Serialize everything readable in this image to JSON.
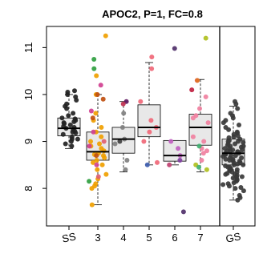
{
  "chart_data": {
    "type": "boxplot",
    "title": "APOC2, P=1, FC=0.8",
    "xlabel": "",
    "ylabel": "",
    "ylim": [
      7.2,
      11.45
    ],
    "y_ticks": [
      8,
      9,
      10,
      11
    ],
    "y_tick_labels": [
      "8",
      "9",
      "10",
      "11"
    ],
    "grid": false,
    "legend": "none",
    "divider_after_category": "7",
    "categories": [
      "SS",
      "3",
      "4",
      "5",
      "6",
      "7",
      "GS"
    ],
    "boxes": [
      {
        "category": "SS",
        "whisker_low": 8.85,
        "q1": 9.12,
        "median": 9.28,
        "q3": 9.5,
        "whisker_high": 10.0,
        "fill": "#e8e8e8"
      },
      {
        "category": "3",
        "whisker_low": 7.65,
        "q1": 8.6,
        "median": 8.78,
        "q3": 9.2,
        "whisker_high": 10.0,
        "fill": "#e8e8e8"
      },
      {
        "category": "4",
        "whisker_low": 8.35,
        "q1": 8.75,
        "median": 9.05,
        "q3": 9.3,
        "whisker_high": 9.85,
        "fill": "#e8e8e8"
      },
      {
        "category": "5",
        "whisker_low": 8.5,
        "q1": 9.1,
        "median": 9.3,
        "q3": 9.78,
        "whisker_high": 10.68,
        "fill": "#e8e8e8"
      },
      {
        "category": "6",
        "whisker_low": 8.5,
        "q1": 8.58,
        "median": 8.7,
        "q3": 9.02,
        "whisker_high": 9.02,
        "fill": "#e8e8e8"
      },
      {
        "category": "7",
        "whisker_low": 8.35,
        "q1": 8.92,
        "median": 9.3,
        "q3": 9.58,
        "whisker_high": 10.32,
        "fill": "#e8e8e8"
      },
      {
        "category": "GS",
        "whisker_low": 7.75,
        "q1": 8.5,
        "median": 8.75,
        "q3": 9.05,
        "whisker_high": 9.75,
        "fill": "#e0e0e0"
      }
    ],
    "points": [
      {
        "category": "SS",
        "color": "#222222",
        "values": [
          8.9,
          8.95,
          9.0,
          9.05,
          9.05,
          9.1,
          9.15,
          9.18,
          9.2,
          9.22,
          9.25,
          9.28,
          9.3,
          9.32,
          9.35,
          9.38,
          9.4,
          9.42,
          9.45,
          9.48,
          9.5,
          9.55,
          9.6,
          9.7,
          9.75,
          9.8,
          9.88,
          9.95,
          10.0,
          10.05,
          10.08
        ]
      },
      {
        "category": "3",
        "color": "#f0a000",
        "values": [
          7.65,
          8.0,
          8.05,
          8.1,
          8.2,
          8.3,
          8.4,
          8.5,
          8.55,
          8.6,
          8.65,
          8.7,
          8.72,
          8.75,
          8.8,
          8.85,
          8.9,
          8.95,
          9.0,
          9.1,
          9.2,
          9.3,
          9.45,
          9.6,
          10.0,
          10.4,
          11.25
        ]
      },
      {
        "category": "3",
        "color": "#d04090",
        "values": [
          8.5,
          8.9,
          9.2,
          9.65,
          10.2
        ]
      },
      {
        "category": "3",
        "color": "#30a040",
        "values": [
          8.15,
          10.55,
          10.75
        ]
      },
      {
        "category": "3",
        "color": "#c05010",
        "values": [
          8.7,
          9.5,
          9.9,
          10.0
        ]
      },
      {
        "category": "3",
        "color": "#e06070",
        "values": [
          8.25,
          9.0
        ]
      },
      {
        "category": "4",
        "color": "#808080",
        "values": [
          8.4,
          8.6,
          8.95,
          9.05,
          9.3,
          9.6
        ]
      },
      {
        "category": "4",
        "color": "#601860",
        "values": [
          9.85
        ]
      },
      {
        "category": "4",
        "color": "#404040",
        "values": [
          9.0
        ]
      },
      {
        "category": "4",
        "color": "#c03050",
        "values": [
          9.8
        ]
      },
      {
        "category": "5",
        "color": "#f06878",
        "values": [
          8.55,
          9.0,
          9.2,
          9.3,
          9.45,
          9.85,
          10.55,
          10.8
        ]
      },
      {
        "category": "5",
        "color": "#4060b0",
        "values": [
          8.5
        ]
      },
      {
        "category": "6",
        "color": "#c060c0",
        "values": [
          8.7,
          8.85,
          9.0
        ]
      },
      {
        "category": "6",
        "color": "#8040a0",
        "values": [
          8.6
        ]
      },
      {
        "category": "6",
        "color": "#50306a",
        "values": [
          7.5,
          10.98
        ]
      },
      {
        "category": "6",
        "color": "#c04070",
        "values": [
          8.5
        ]
      },
      {
        "category": "7",
        "color": "#f080a0",
        "values": [
          8.6,
          8.75,
          8.8,
          8.85,
          9.0,
          9.1,
          9.4,
          9.5,
          9.55,
          9.7,
          9.95,
          10.3
        ]
      },
      {
        "category": "7",
        "color": "#b0c020",
        "values": [
          8.4,
          8.5,
          11.2
        ]
      },
      {
        "category": "7",
        "color": "#40b070",
        "values": [
          8.45,
          8.9
        ]
      },
      {
        "category": "7",
        "color": "#c02040",
        "values": [
          10.1
        ]
      },
      {
        "category": "7",
        "color": "#e07020",
        "values": [
          10.3
        ]
      },
      {
        "category": "GS",
        "color": "#3a3a3a",
        "values": [
          7.75,
          7.8,
          7.85,
          7.95,
          8.0,
          8.02,
          8.05,
          8.08,
          8.1,
          8.12,
          8.15,
          8.18,
          8.2,
          8.22,
          8.25,
          8.25,
          8.28,
          8.3,
          8.3,
          8.32,
          8.35,
          8.35,
          8.38,
          8.4,
          8.4,
          8.42,
          8.45,
          8.45,
          8.48,
          8.5,
          8.5,
          8.52,
          8.55,
          8.55,
          8.58,
          8.6,
          8.6,
          8.62,
          8.62,
          8.65,
          8.65,
          8.68,
          8.7,
          8.7,
          8.72,
          8.72,
          8.75,
          8.75,
          8.75,
          8.78,
          8.78,
          8.8,
          8.8,
          8.82,
          8.82,
          8.85,
          8.85,
          8.88,
          8.9,
          8.9,
          8.92,
          8.95,
          8.95,
          8.98,
          9.0,
          9.0,
          9.02,
          9.05,
          9.08,
          9.1,
          9.12,
          9.15,
          9.18,
          9.2,
          9.25,
          9.3,
          9.35,
          9.4,
          9.45,
          9.5,
          9.55,
          9.6,
          9.7,
          9.8,
          9.85
        ]
      }
    ]
  }
}
